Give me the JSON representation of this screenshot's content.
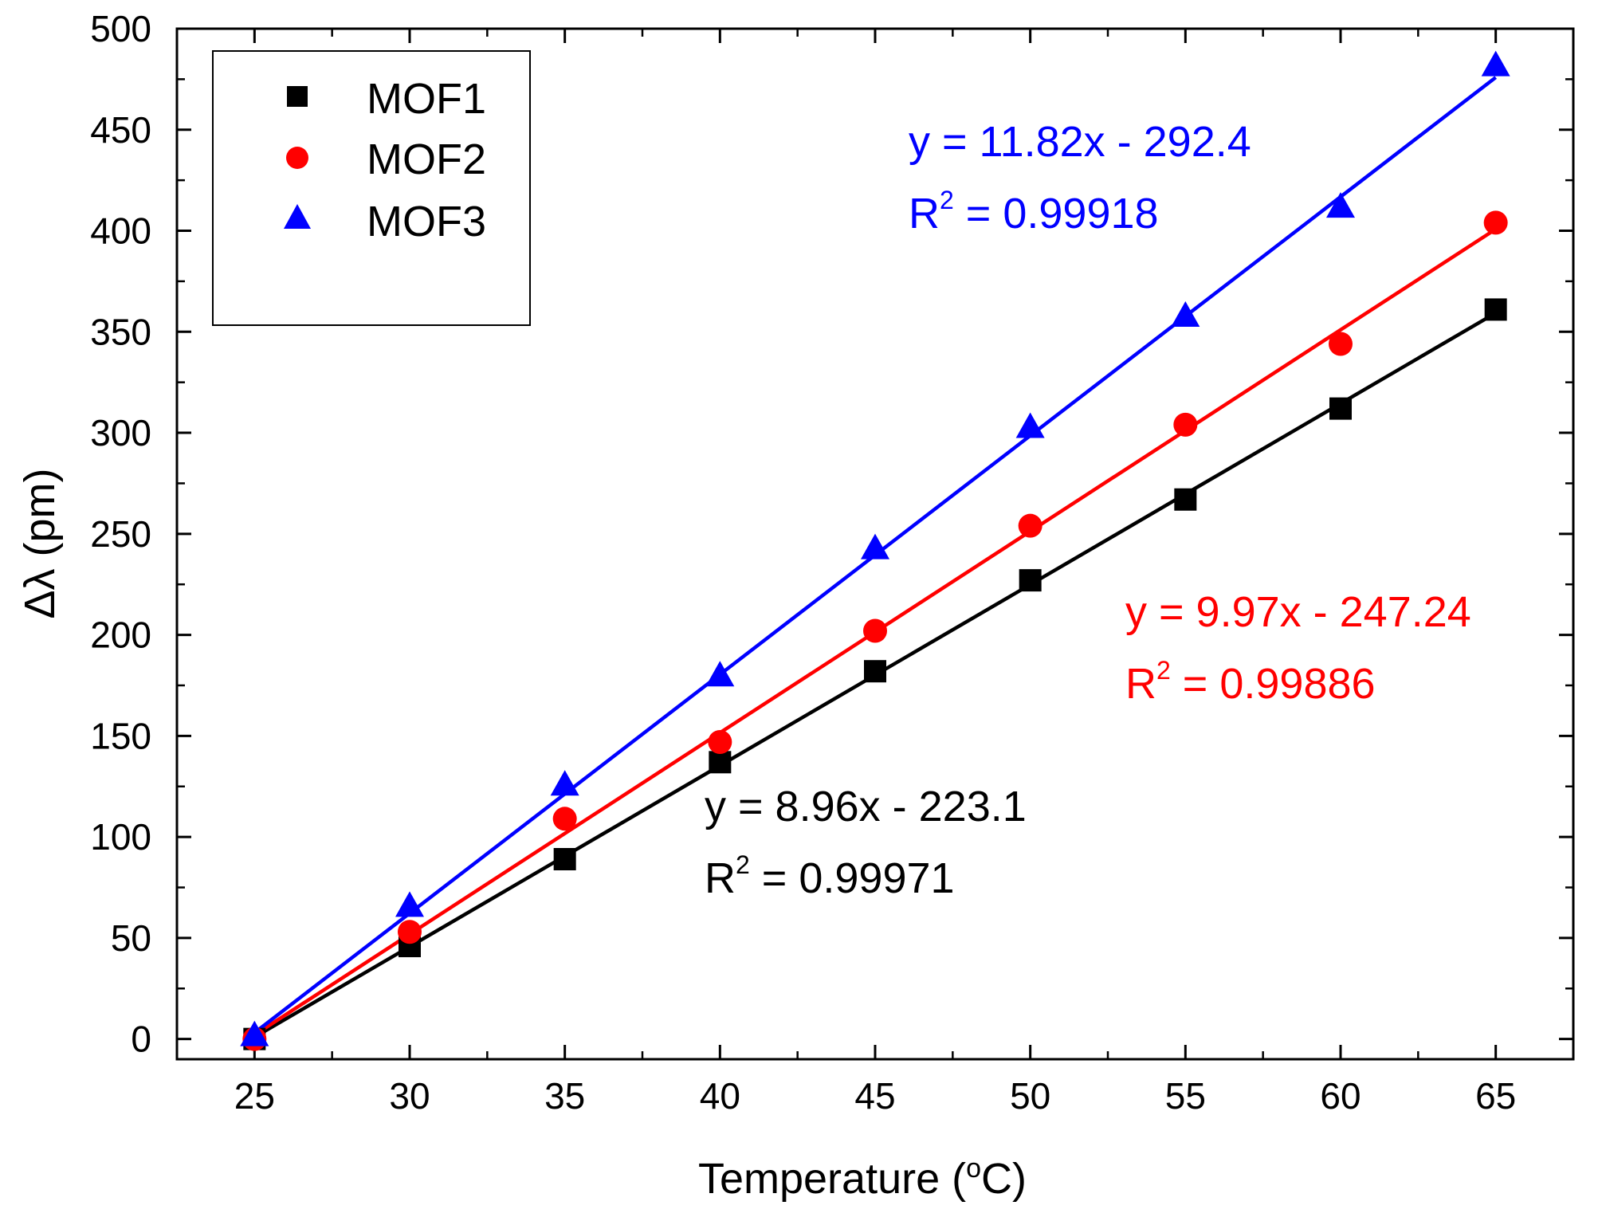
{
  "chart_data": {
    "type": "scatter",
    "title": "",
    "xlabel": "Temperature",
    "xlabel_unit_prefix": "(",
    "xlabel_unit_super": "o",
    "xlabel_unit_suffix": "C)",
    "ylabel": "Δλ (pm)",
    "xlim": [
      22.5,
      67.5
    ],
    "ylim": [
      -10,
      500
    ],
    "xticks": [
      25,
      30,
      35,
      40,
      45,
      50,
      55,
      60,
      65
    ],
    "yticks": [
      0,
      50,
      100,
      150,
      200,
      250,
      300,
      350,
      400,
      450,
      500
    ],
    "x": [
      25,
      30,
      35,
      40,
      45,
      50,
      55,
      60,
      65
    ],
    "grid": false,
    "legend_position": "top-left",
    "series": [
      {
        "name": "MOF1",
        "marker": "square",
        "color": "#000000",
        "values": [
          0,
          46,
          89,
          137,
          182,
          227,
          267,
          312,
          361
        ],
        "fit": {
          "slope": 8.96,
          "intercept": -223.1
        },
        "equation": "y = 8.96x - 223.1",
        "r2_label": "R",
        "r2_sup": "2",
        "r2_value": " = 0.99971"
      },
      {
        "name": "MOF2",
        "marker": "circle",
        "color": "#ff0000",
        "values": [
          0,
          53,
          109,
          147,
          202,
          254,
          304,
          344,
          404
        ],
        "fit": {
          "slope": 9.97,
          "intercept": -247.24
        },
        "equation": "y = 9.97x - 247.24",
        "r2_label": "R",
        "r2_sup": "2",
        "r2_value": " = 0.99886"
      },
      {
        "name": "MOF3",
        "marker": "triangle",
        "color": "#0000ff",
        "values": [
          2,
          66,
          126,
          180,
          243,
          303,
          358,
          412,
          482
        ],
        "fit": {
          "slope": 11.82,
          "intercept": -292.4
        },
        "equation": "y = 11.82x - 292.4",
        "r2_label": "R",
        "r2_sup": "2",
        "r2_value": " = 0.99918"
      }
    ]
  }
}
